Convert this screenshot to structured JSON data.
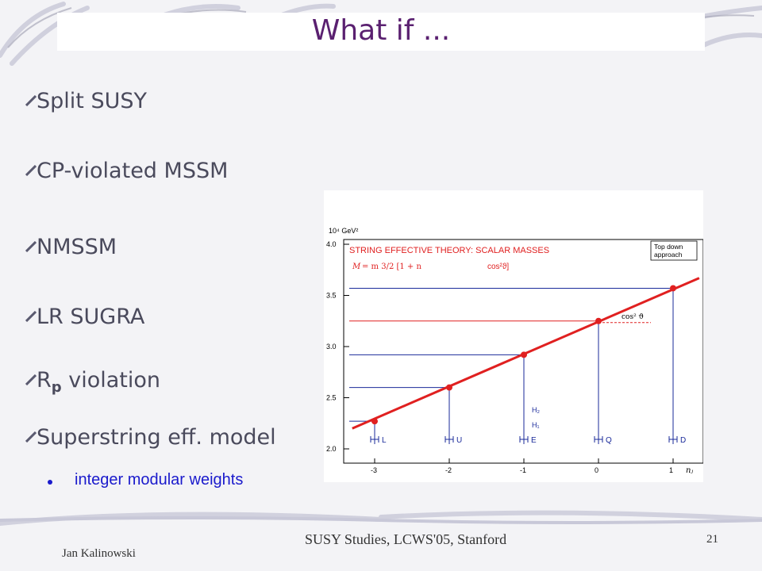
{
  "slide": {
    "title": "What if ...",
    "bullets": [
      {
        "label": "Split SUSY"
      },
      {
        "label": "CP-violated MSSM"
      },
      {
        "label": "NMSSM"
      },
      {
        "label": "LR SUGRA"
      },
      {
        "label_main": "R",
        "label_sub": "p",
        "label_rest": " violation"
      },
      {
        "label": "Superstring eff. model"
      }
    ],
    "sub_bullets": [
      {
        "label": "integer modular weights"
      }
    ],
    "footer": {
      "author": "Jan Kalinowski",
      "center": "SUSY Studies,  LCWS'05, Stanford",
      "page": "21"
    },
    "colors": {
      "title": "#5a2070",
      "bullet_text": "#4a4a5c",
      "sub_bullet_text": "#1a1acc",
      "plot_red": "#e02020",
      "plot_blue": "#1a2a9a"
    }
  },
  "chart_data": {
    "type": "line",
    "title": "STRING EFFECTIVE THEORY: SCALAR MASSES",
    "formula_text": "cos²ϑ]",
    "corner_box": [
      "Top down",
      "approach"
    ],
    "y_unit_label": "10⁴ GeV²",
    "yticks": [
      "2.0",
      "2.5",
      "3.0",
      "3.5",
      "4.0"
    ],
    "ylim": [
      2.0,
      4.0
    ],
    "xticks": [
      "-3",
      "-2",
      "-1",
      "0",
      "1"
    ],
    "xlim": [
      -3.3,
      1.35
    ],
    "xlabel": "nⱼ",
    "line": {
      "x": [
        -3.3,
        1.35
      ],
      "y": [
        2.2,
        3.67
      ]
    },
    "points": [
      {
        "x": -3,
        "y": 2.27,
        "label": "L"
      },
      {
        "x": -2,
        "y": 2.6,
        "label": "U"
      },
      {
        "x": -1,
        "y": 2.92,
        "label": "E"
      },
      {
        "x": 0,
        "y": 3.25,
        "label": "Q"
      },
      {
        "x": 1,
        "y": 3.57,
        "label": "D"
      }
    ],
    "higgs_labels": [
      "H₂",
      "H₁"
    ],
    "cos_label": "cos² ϑ"
  }
}
